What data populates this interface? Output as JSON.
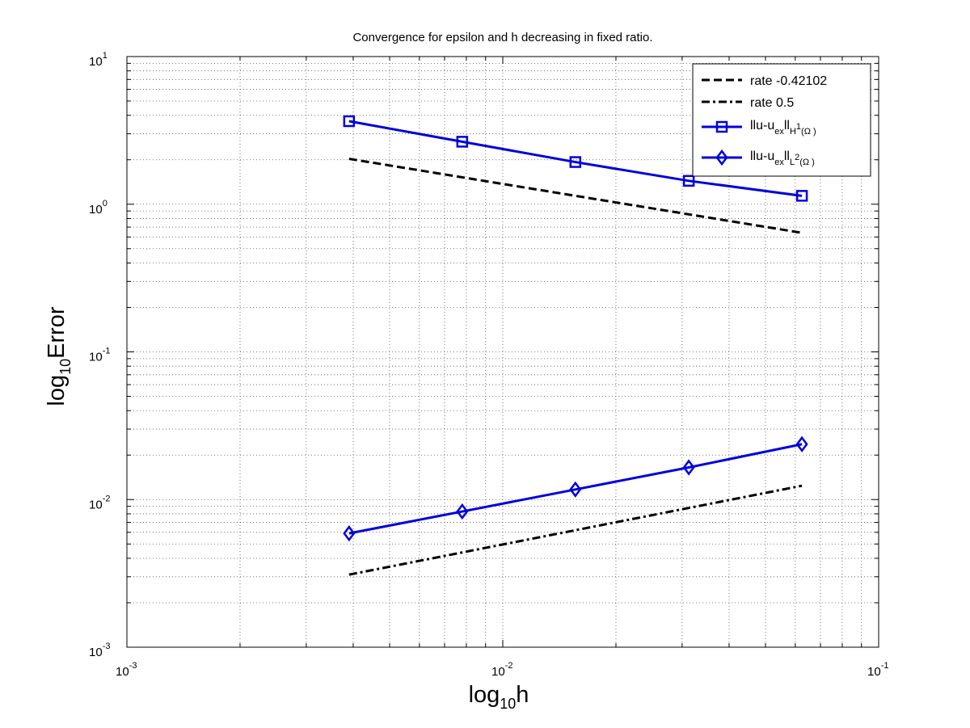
{
  "chart_data": {
    "type": "line",
    "title": "Convergence for epsilon and h decreasing in fixed ratio.",
    "xlabel": {
      "base": "log",
      "sub": "10",
      "tail": "h"
    },
    "ylabel": {
      "base": "log",
      "sub": "10",
      "tail": "Error"
    },
    "xscale": "log",
    "yscale": "log",
    "xlim": [
      0.001,
      0.1
    ],
    "ylim": [
      0.001,
      10
    ],
    "grid": true,
    "legend_position": "top-right",
    "x_ticks": [
      {
        "value": 0.001,
        "base": "10",
        "exp": "-3"
      },
      {
        "value": 0.01,
        "base": "10",
        "exp": "-2"
      },
      {
        "value": 0.1,
        "base": "10",
        "exp": "-1"
      }
    ],
    "y_ticks": [
      {
        "value": 0.001,
        "base": "10",
        "exp": "-3"
      },
      {
        "value": 0.01,
        "base": "10",
        "exp": "-2"
      },
      {
        "value": 0.1,
        "base": "10",
        "exp": "-1"
      },
      {
        "value": 1,
        "base": "10",
        "exp": "0"
      },
      {
        "value": 10,
        "base": "10",
        "exp": "1"
      }
    ],
    "series": [
      {
        "name": "rate -0.42102",
        "color": "#000000",
        "style": "dashed",
        "marker": "none",
        "x": [
          0.0039,
          0.0625
        ],
        "y": [
          2.03,
          0.64
        ]
      },
      {
        "name": "rate 0.5",
        "color": "#000000",
        "style": "dashdot",
        "marker": "none",
        "x": [
          0.0039,
          0.0625
        ],
        "y": [
          0.0031,
          0.0124
        ]
      },
      {
        "name": "||u-u_ex||_H1(Ω)",
        "legend": {
          "a": "llu-u",
          "b": "ex",
          "c": "ll",
          "d": "H",
          "e": "1",
          "f": "(Ω )"
        },
        "color": "#0000dd",
        "style": "solid",
        "marker": "square",
        "x": [
          0.0039,
          0.0078,
          0.0156,
          0.03125,
          0.0625
        ],
        "y": [
          3.65,
          2.65,
          1.93,
          1.44,
          1.14
        ]
      },
      {
        "name": "||u-u_ex||_L2(Ω)",
        "legend": {
          "a": "llu-u",
          "b": "ex",
          "c": "ll",
          "d": "L",
          "e": "2",
          "f": "(Ω )"
        },
        "color": "#0000dd",
        "style": "solid",
        "marker": "diamond",
        "x": [
          0.0039,
          0.0078,
          0.0156,
          0.03125,
          0.0625
        ],
        "y": [
          0.0059,
          0.0083,
          0.0117,
          0.0165,
          0.0237
        ]
      }
    ]
  }
}
